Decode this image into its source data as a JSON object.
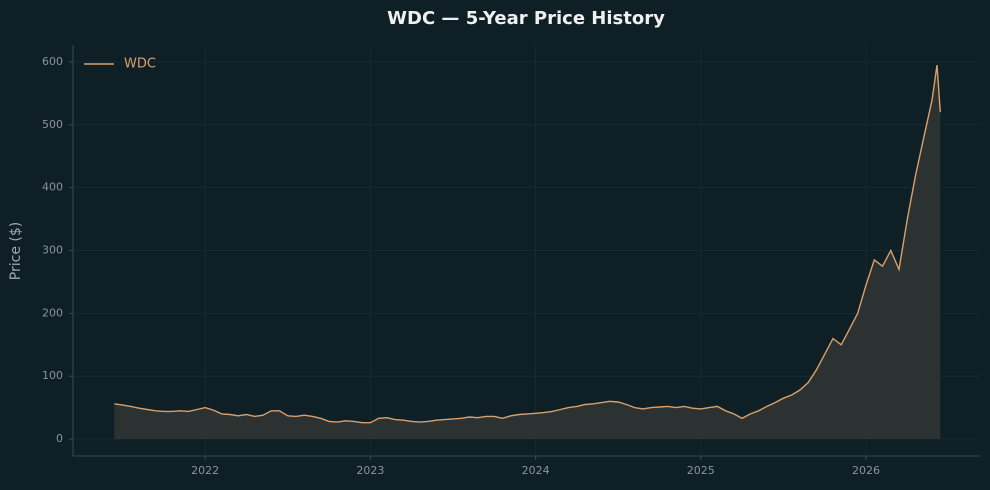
{
  "chart_data": {
    "type": "line",
    "title": "WDC — 5-Year Price History",
    "y_label": "Price ($)",
    "x": [
      2021.45,
      2021.5,
      2021.55,
      2021.6,
      2021.65,
      2021.7,
      2021.75,
      2021.8,
      2021.85,
      2021.9,
      2021.95,
      2022.0,
      2022.05,
      2022.1,
      2022.15,
      2022.2,
      2022.25,
      2022.3,
      2022.35,
      2022.4,
      2022.45,
      2022.5,
      2022.55,
      2022.6,
      2022.65,
      2022.7,
      2022.75,
      2022.8,
      2022.85,
      2022.9,
      2022.95,
      2023.0,
      2023.05,
      2023.1,
      2023.15,
      2023.2,
      2023.25,
      2023.3,
      2023.35,
      2023.4,
      2023.45,
      2023.5,
      2023.55,
      2023.6,
      2023.65,
      2023.7,
      2023.75,
      2023.8,
      2023.85,
      2023.9,
      2023.95,
      2024.0,
      2024.05,
      2024.1,
      2024.15,
      2024.2,
      2024.25,
      2024.3,
      2024.35,
      2024.4,
      2024.45,
      2024.5,
      2024.55,
      2024.6,
      2024.65,
      2024.7,
      2024.75,
      2024.8,
      2024.85,
      2024.9,
      2024.95,
      2025.0,
      2025.05,
      2025.1,
      2025.15,
      2025.2,
      2025.25,
      2025.3,
      2025.35,
      2025.4,
      2025.45,
      2025.5,
      2025.55,
      2025.6,
      2025.65,
      2025.7,
      2025.75,
      2025.8,
      2025.85,
      2025.9,
      2025.95,
      2026.0,
      2026.05,
      2026.1,
      2026.15,
      2026.2,
      2026.25,
      2026.3,
      2026.35,
      2026.4,
      2026.43,
      2026.45
    ],
    "series": [
      {
        "name": "WDC",
        "color": "#d9a06b",
        "values": [
          56,
          54,
          52,
          49,
          47,
          45,
          44,
          44,
          45,
          44,
          47,
          50,
          46,
          40,
          39,
          37,
          39,
          36,
          38,
          45,
          45,
          37,
          36,
          38,
          36,
          33,
          28,
          27,
          29,
          28,
          26,
          26,
          33,
          34,
          31,
          30,
          28,
          27,
          28,
          30,
          31,
          32,
          33,
          35,
          34,
          36,
          36,
          33,
          37,
          39,
          40,
          41,
          42,
          44,
          47,
          50,
          52,
          55,
          56,
          58,
          60,
          59,
          55,
          50,
          48,
          50,
          51,
          52,
          50,
          52,
          49,
          48,
          50,
          52,
          45,
          40,
          33,
          40,
          45,
          52,
          58,
          65,
          70,
          78,
          90,
          110,
          135,
          160,
          150,
          175,
          200,
          245,
          285,
          275,
          300,
          270,
          350,
          420,
          480,
          540,
          595,
          520
        ]
      }
    ],
    "fill_color": "#2f3433",
    "xlim": [
      2021.2,
      2026.69
    ],
    "xticks": [
      2022,
      2023,
      2024,
      2025,
      2026
    ],
    "ylim": [
      -27,
      627
    ],
    "yticks": [
      0,
      100,
      200,
      300,
      400,
      500,
      600
    ],
    "grid": true,
    "legend": "upper-left"
  }
}
